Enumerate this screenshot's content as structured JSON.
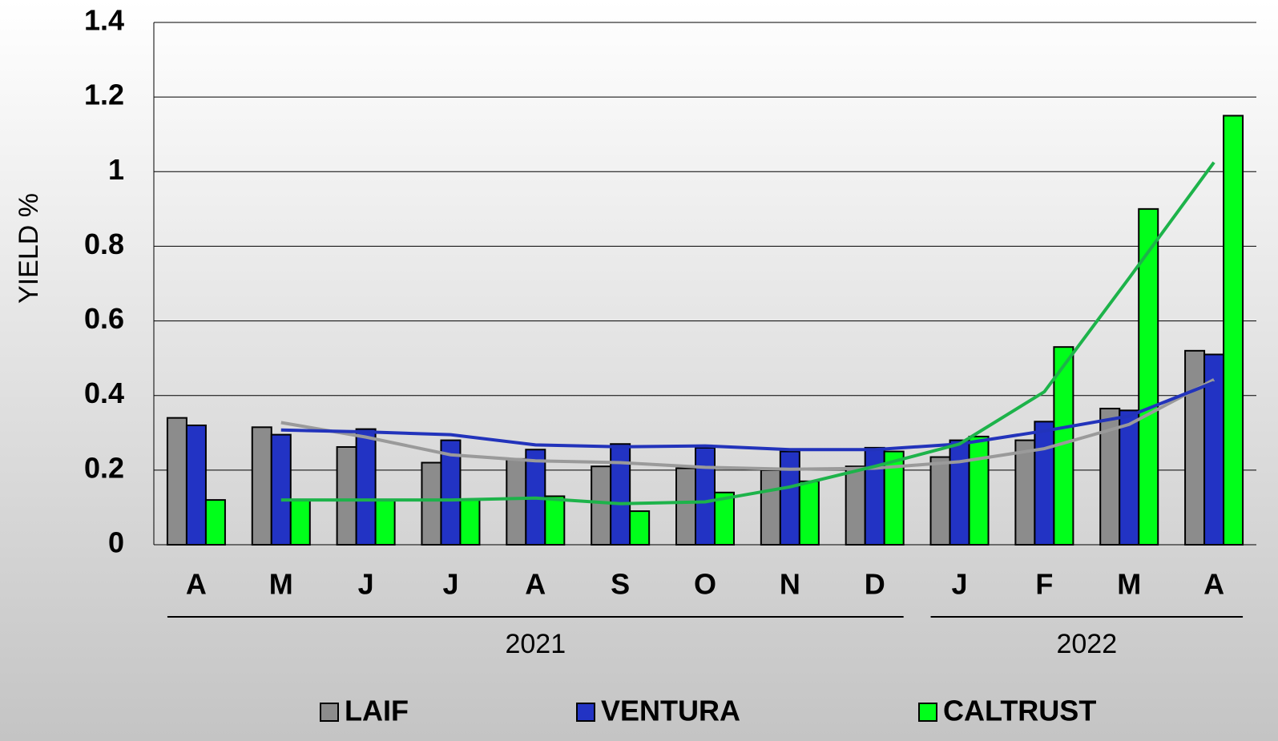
{
  "chart_data": {
    "type": "bar",
    "y_label": "YIELD %",
    "categories": [
      "A",
      "M",
      "J",
      "J",
      "A",
      "S",
      "O",
      "N",
      "D",
      "J",
      "F",
      "M",
      "A"
    ],
    "x_groups": [
      {
        "label": "2021",
        "start": 0,
        "end": 8
      },
      {
        "label": "2022",
        "start": 9,
        "end": 12
      }
    ],
    "series": [
      {
        "name": "LAIF",
        "color": "#8c8c8c",
        "trend_color": "#9a9a9a",
        "values": [
          0.34,
          0.315,
          0.262,
          0.22,
          0.23,
          0.21,
          0.205,
          0.2,
          0.21,
          0.235,
          0.28,
          0.365,
          0.52
        ]
      },
      {
        "name": "VENTURA",
        "color": "#2233c4",
        "trend_color": "#2233bb",
        "values": [
          0.32,
          0.295,
          0.31,
          0.28,
          0.255,
          0.27,
          0.26,
          0.25,
          0.26,
          0.28,
          0.33,
          0.36,
          0.51
        ]
      },
      {
        "name": "CALTRUST",
        "color": "#00ff1a",
        "trend_color": "#1db34a",
        "values": [
          0.12,
          0.12,
          0.12,
          0.12,
          0.13,
          0.09,
          0.14,
          0.17,
          0.25,
          0.29,
          0.53,
          0.9,
          1.15
        ]
      }
    ],
    "trendline": {
      "type": "moving-average",
      "period": 2
    },
    "ylim": [
      0,
      1.4
    ],
    "yticks": [
      0,
      0.2,
      0.4,
      0.6,
      0.8,
      1,
      1.2,
      1.4
    ],
    "grid": true,
    "legend": "bottom"
  }
}
